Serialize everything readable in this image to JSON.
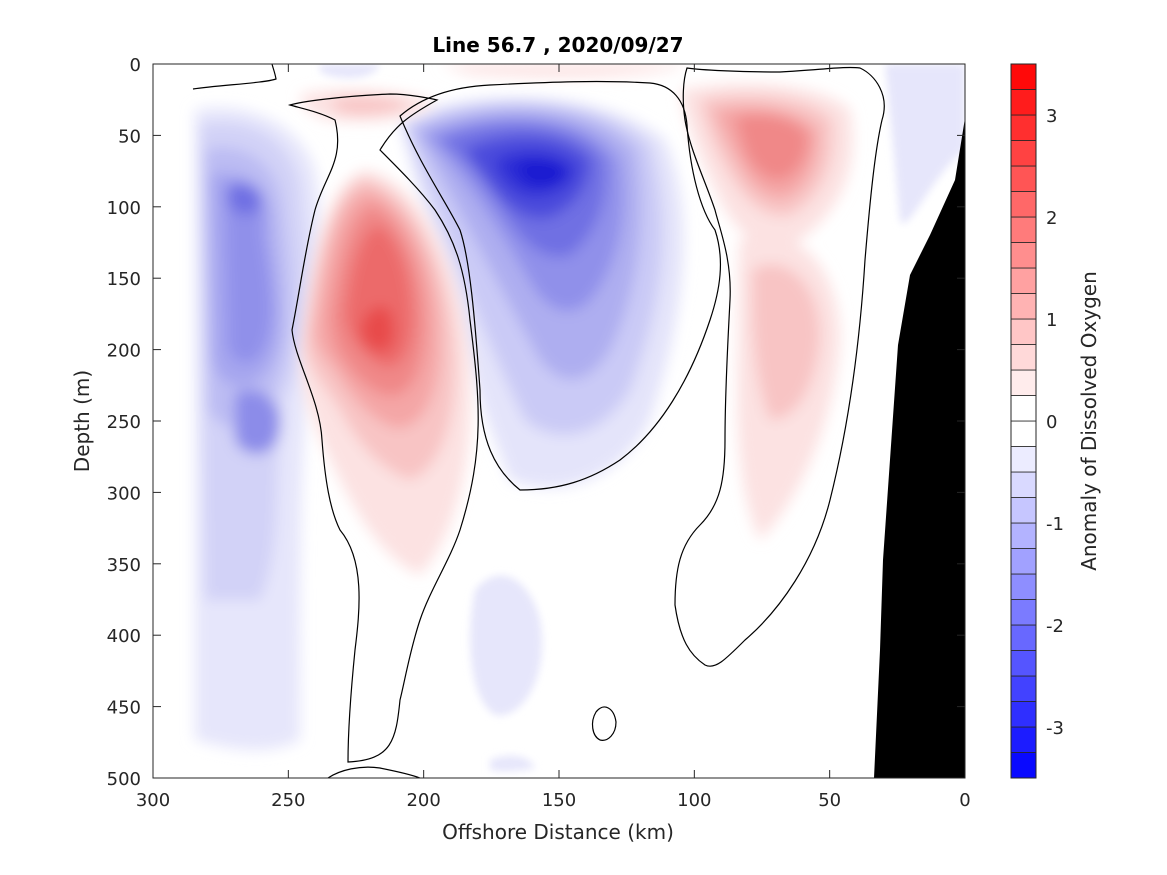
{
  "chart_data": {
    "type": "contour",
    "title": "Line 56.7 , 2020/09/27",
    "xlabel": "Offshore Distance (km)",
    "ylabel": "Depth (m)",
    "xlim": [
      300,
      0
    ],
    "ylim": [
      0,
      500
    ],
    "x_axis_reversed": true,
    "y_axis_reversed": true,
    "x_ticks": [
      300,
      250,
      200,
      150,
      100,
      50,
      0
    ],
    "y_ticks": [
      0,
      50,
      100,
      150,
      200,
      250,
      300,
      350,
      400,
      450,
      500
    ],
    "colorbar": {
      "label": "Anomaly of Dissolved Oxygen",
      "min": -3.5,
      "max": 3.5,
      "step": 0.25,
      "ticks": [
        3,
        2,
        1,
        0,
        -1,
        -2,
        -3
      ],
      "colormap": "blue-white-red",
      "negative_color": "#0000ff",
      "positive_color": "#ff0000",
      "neutral_color": "#ffffff"
    },
    "bathymetry_color": "#000000",
    "features": [
      {
        "name": "offshore low-oxygen band",
        "sign": "negative",
        "center_km": 265,
        "center_depth_m": 250,
        "peak": -1.75
      },
      {
        "name": "subsurface high-oxygen core",
        "sign": "positive",
        "center_km": 218,
        "center_depth_m": 195,
        "peak": 1.75
      },
      {
        "name": "near-surface low-oxygen core",
        "sign": "negative",
        "center_km": 148,
        "center_depth_m": 75,
        "peak": -3.0
      },
      {
        "name": "inshore high-oxygen core",
        "sign": "positive",
        "center_km": 70,
        "center_depth_m": 55,
        "peak": 1.25
      }
    ]
  }
}
